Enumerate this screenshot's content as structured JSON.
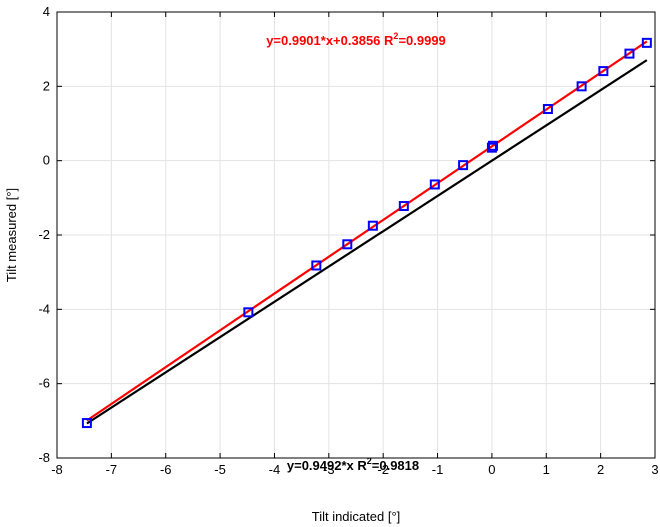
{
  "chart_data": {
    "type": "scatter",
    "xlabel": "Tilt indicated [°]",
    "ylabel": "Tilt measured [°]",
    "xlim": [
      -8,
      3
    ],
    "ylim": [
      -8,
      4
    ],
    "x_ticks": [
      -8,
      -7,
      -6,
      -5,
      -4,
      -3,
      -2,
      -1,
      0,
      1,
      2,
      3
    ],
    "y_ticks": [
      -8,
      -6,
      -4,
      -2,
      0,
      2,
      4
    ],
    "grid": true,
    "points": {
      "x": [
        -7.45,
        -4.48,
        -3.23,
        -2.66,
        -2.19,
        -1.62,
        -1.05,
        -0.53,
        0.0,
        0.02,
        1.03,
        1.65,
        2.05,
        2.53,
        2.85
      ],
      "y": [
        -7.06,
        -4.08,
        -2.82,
        -2.25,
        -1.75,
        -1.22,
        -0.64,
        -0.12,
        0.35,
        0.4,
        1.39,
        2.0,
        2.41,
        2.88,
        3.17
      ]
    },
    "fit_lines": [
      {
        "slope": 0.9901,
        "intercept": 0.3856,
        "x_range": [
          -7.45,
          2.85
        ],
        "color": "#ff0000",
        "label": "y=0.9901*x+0.3856  R",
        "r2_label": "=0.9999"
      },
      {
        "slope": 0.9492,
        "intercept": 0,
        "x_range": [
          -7.45,
          2.85
        ],
        "color": "#000000",
        "label": "y=0.9492*x  R",
        "r2_label": "=0.9818"
      }
    ],
    "marker_color": "#0000ff",
    "superscript": "2"
  }
}
